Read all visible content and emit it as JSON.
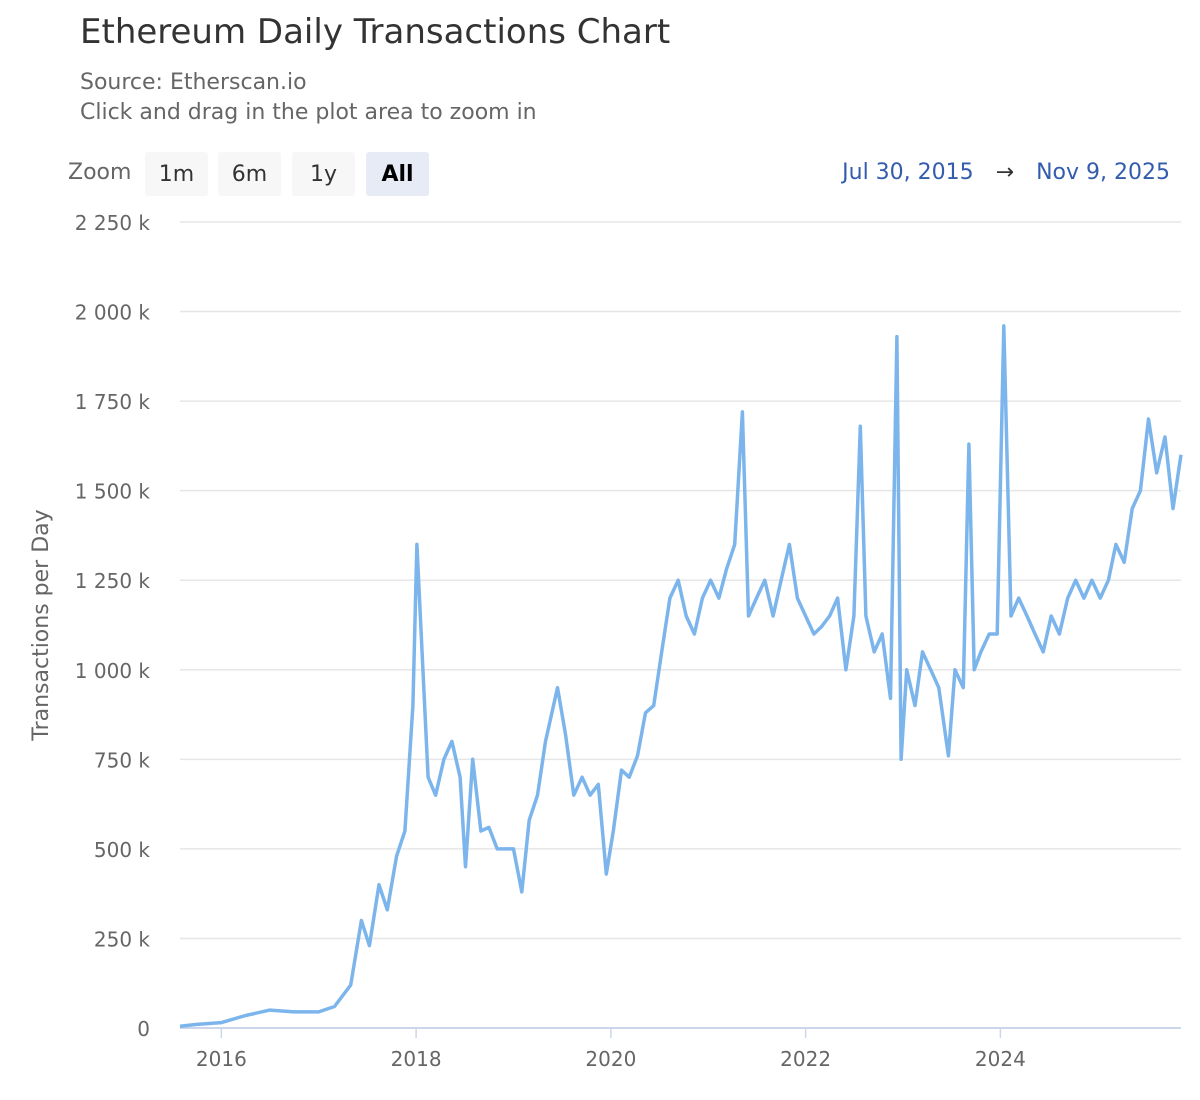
{
  "header": {
    "title": "Ethereum Daily Transactions Chart",
    "source": "Source: Etherscan.io",
    "hint": "Click and drag in the plot area to zoom in"
  },
  "zoom": {
    "label": "Zoom",
    "buttons": [
      "1m",
      "6m",
      "1y",
      "All"
    ],
    "selected": "All"
  },
  "range": {
    "from": "Jul 30, 2015",
    "arrow": "→",
    "to": "Nov 9, 2025"
  },
  "colors": {
    "series": "#7cb5ec",
    "grid": "#e6e6e6",
    "axis": "#ccd6eb",
    "range_text": "#335cad"
  },
  "chart_data": {
    "type": "line",
    "title": "Ethereum Daily Transactions Chart",
    "ylabel": "Transactions per Day",
    "xlabel": "",
    "xlim": [
      "2015-07-30",
      "2025-11-09"
    ],
    "ylim": [
      0,
      2250000
    ],
    "y_ticks": [
      0,
      250000,
      500000,
      750000,
      1000000,
      1250000,
      1500000,
      1750000,
      2000000,
      2250000
    ],
    "y_tick_labels": [
      "0",
      "250 k",
      "500 k",
      "750 k",
      "1 000 k",
      "1 250 k",
      "1 500 k",
      "1 750 k",
      "2 000 k",
      "2 250 k"
    ],
    "x_tick_labels": [
      "2016",
      "2018",
      "2020",
      "2022",
      "2024"
    ],
    "grid": true,
    "legend": "none",
    "series": [
      {
        "x": [
          "2015-07-30",
          "2015-10-01",
          "2016-01-01",
          "2016-04-01",
          "2016-07-01",
          "2016-10-01",
          "2017-01-01",
          "2017-03-01",
          "2017-05-01",
          "2017-06-10",
          "2017-07-10",
          "2017-08-15",
          "2017-09-15",
          "2017-10-20",
          "2017-11-20",
          "2017-12-20",
          "2018-01-04",
          "2018-01-20",
          "2018-02-15",
          "2018-03-15",
          "2018-04-15",
          "2018-05-15",
          "2018-06-15",
          "2018-07-05",
          "2018-08-01",
          "2018-09-01",
          "2018-10-01",
          "2018-11-01",
          "2018-12-01",
          "2019-01-01",
          "2019-02-01",
          "2019-03-01",
          "2019-04-01",
          "2019-05-01",
          "2019-06-15",
          "2019-07-15",
          "2019-08-15",
          "2019-09-15",
          "2019-10-15",
          "2019-11-15",
          "2019-12-15",
          "2020-01-10",
          "2020-02-10",
          "2020-03-10",
          "2020-04-10",
          "2020-05-10",
          "2020-06-10",
          "2020-07-10",
          "2020-08-10",
          "2020-09-10",
          "2020-10-10",
          "2020-11-10",
          "2020-12-10",
          "2021-01-10",
          "2021-02-10",
          "2021-03-10",
          "2021-04-10",
          "2021-05-09",
          "2021-06-01",
          "2021-07-01",
          "2021-08-01",
          "2021-09-01",
          "2021-10-01",
          "2021-11-01",
          "2021-12-01",
          "2022-01-01",
          "2022-02-01",
          "2022-03-01",
          "2022-04-01",
          "2022-05-01",
          "2022-06-01",
          "2022-07-01",
          "2022-07-25",
          "2022-08-15",
          "2022-09-15",
          "2022-10-15",
          "2022-11-15",
          "2022-12-09",
          "2022-12-25",
          "2023-01-15",
          "2023-02-15",
          "2023-03-15",
          "2023-04-15",
          "2023-05-15",
          "2023-06-20",
          "2023-07-15",
          "2023-08-15",
          "2023-09-05",
          "2023-09-25",
          "2023-10-20",
          "2023-11-20",
          "2023-12-20",
          "2024-01-14",
          "2024-02-10",
          "2024-03-10",
          "2024-04-10",
          "2024-05-10",
          "2024-06-10",
          "2024-07-10",
          "2024-08-10",
          "2024-09-10",
          "2024-10-10",
          "2024-11-10",
          "2024-12-10",
          "2025-01-10",
          "2025-02-10",
          "2025-03-10",
          "2025-04-10",
          "2025-05-10",
          "2025-06-10",
          "2025-07-10",
          "2025-08-10",
          "2025-09-10",
          "2025-10-10",
          "2025-11-09"
        ],
        "y": [
          5000,
          10000,
          15000,
          35000,
          50000,
          45000,
          45000,
          60000,
          120000,
          300000,
          230000,
          400000,
          330000,
          480000,
          550000,
          900000,
          1350000,
          1100000,
          700000,
          650000,
          750000,
          800000,
          700000,
          450000,
          750000,
          550000,
          560000,
          500000,
          500000,
          500000,
          380000,
          580000,
          650000,
          800000,
          950000,
          820000,
          650000,
          700000,
          650000,
          680000,
          430000,
          550000,
          720000,
          700000,
          760000,
          880000,
          900000,
          1050000,
          1200000,
          1250000,
          1150000,
          1100000,
          1200000,
          1250000,
          1200000,
          1280000,
          1350000,
          1720000,
          1150000,
          1200000,
          1250000,
          1150000,
          1250000,
          1350000,
          1200000,
          1150000,
          1100000,
          1120000,
          1150000,
          1200000,
          1000000,
          1150000,
          1680000,
          1150000,
          1050000,
          1100000,
          920000,
          1930000,
          750000,
          1000000,
          900000,
          1050000,
          1000000,
          950000,
          760000,
          1000000,
          950000,
          1630000,
          1000000,
          1050000,
          1100000,
          1100000,
          1960000,
          1150000,
          1200000,
          1150000,
          1100000,
          1050000,
          1150000,
          1100000,
          1200000,
          1250000,
          1200000,
          1250000,
          1200000,
          1250000,
          1350000,
          1300000,
          1450000,
          1500000,
          1700000,
          1550000,
          1650000,
          1450000,
          1600000
        ]
      }
    ]
  }
}
